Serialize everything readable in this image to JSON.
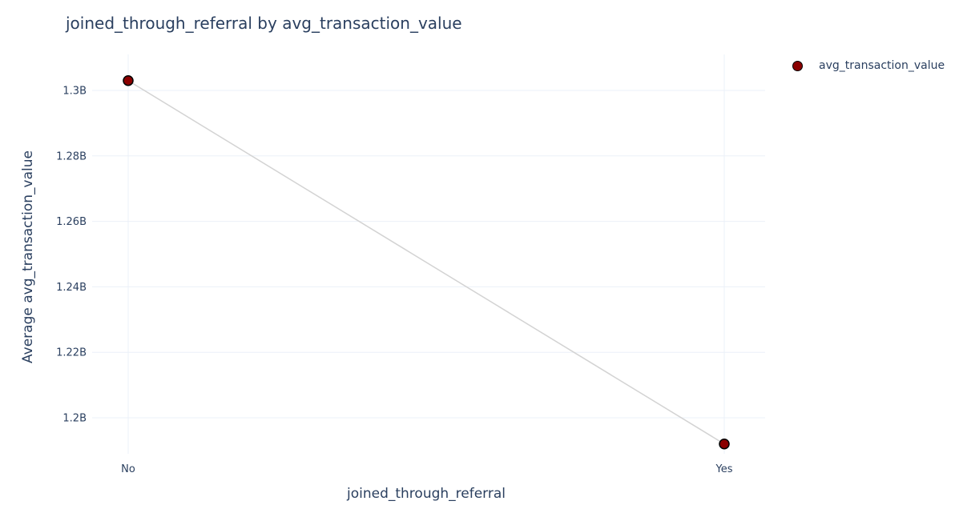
{
  "chart_data": {
    "type": "line",
    "title": "joined_through_referral by avg_transaction_value",
    "xlabel": "joined_through_referral",
    "ylabel": "Average avg_transaction_value",
    "categories": [
      "No",
      "Yes"
    ],
    "series": [
      {
        "name": "avg_transaction_value",
        "values": [
          1303000000,
          1192000000
        ]
      }
    ],
    "ylim": [
      1189000000,
      1311000000
    ],
    "y_ticks": [
      1200000000,
      1220000000,
      1240000000,
      1260000000,
      1280000000,
      1300000000
    ],
    "y_tick_labels": [
      "1.2B",
      "1.22B",
      "1.24B",
      "1.26B",
      "1.28B",
      "1.3B"
    ],
    "grid": true,
    "legend_position": "top-right"
  },
  "colors": {
    "marker_fill": "#8b0000",
    "marker_outline": "#000000",
    "line": "#d3d3d3",
    "grid": "#ebf0f8",
    "text": "#2a3f5f"
  }
}
